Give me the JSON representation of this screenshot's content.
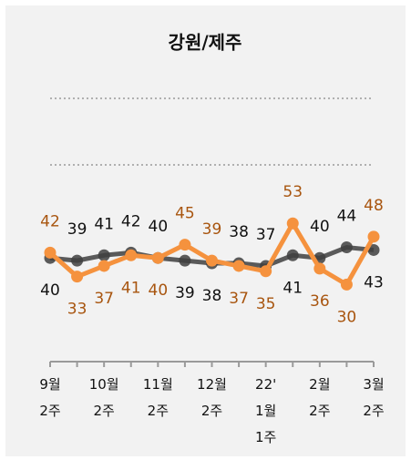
{
  "chart_data": {
    "type": "line",
    "title": "강원/제주",
    "categories": [
      "9월\n2주",
      null,
      "10월\n2주",
      null,
      "11월\n2주",
      null,
      "12월\n2주",
      null,
      "22'\n1월\n1주",
      null,
      "2월\n2주",
      null,
      "3월\n2주"
    ],
    "series": [
      {
        "color": "#3f3f3f",
        "label_color": "#111111",
        "values": [
          40,
          39,
          41,
          42,
          40,
          39,
          38,
          38,
          37,
          41,
          40,
          44,
          43
        ]
      },
      {
        "color": "#f5923e",
        "label_color": "#a8550f",
        "values": [
          42,
          33,
          37,
          41,
          40,
          45,
          39,
          37,
          35,
          53,
          36,
          30,
          48
        ]
      }
    ],
    "ylim": [
      0,
      100
    ],
    "yticks": [
      75,
      100
    ],
    "grid": true
  }
}
